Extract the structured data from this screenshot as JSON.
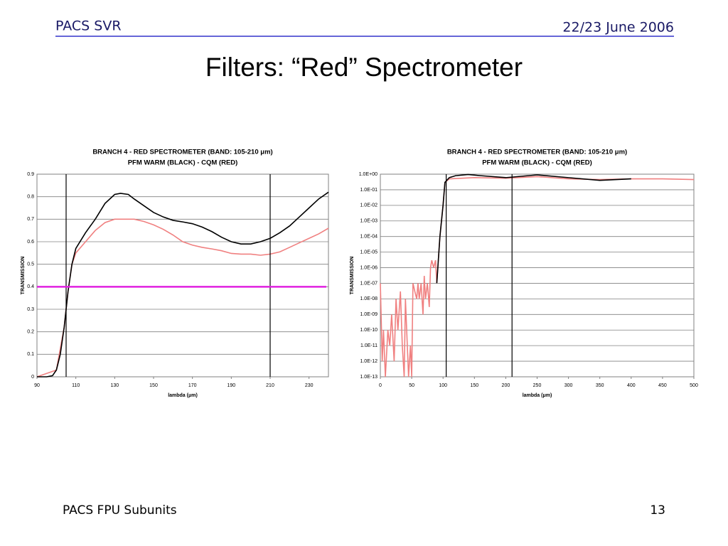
{
  "header": {
    "left": "PACS SVR",
    "right": "22/23 June 2006"
  },
  "title": "Filters: “Red” Spectrometer",
  "footer": {
    "left": "PACS FPU Subunits",
    "right": "13"
  },
  "chart_data": [
    {
      "type": "line",
      "title": "BRANCH 4 - RED SPECTROMETER (BAND: 105-210 μm)",
      "subtitle": "PFM WARM (BLACK) - CQM (RED)",
      "x_label": "lambda (μm)",
      "y_label": "TRANSMISSION",
      "xlim": [
        90,
        240
      ],
      "xticks": [
        90,
        110,
        130,
        150,
        170,
        190,
        210,
        230
      ],
      "ylim": [
        0,
        0.9
      ],
      "yticks": [
        0,
        0.1,
        0.2,
        0.3,
        0.4,
        0.5,
        0.6,
        0.7,
        0.8,
        0.9
      ],
      "grid": true,
      "log_y": false,
      "vlines": [
        105,
        210
      ],
      "vline_color": "#000000",
      "hlines": [
        0.4
      ],
      "hline_color": "#e020e0",
      "series": [
        {
          "color": "#f08080",
          "x": [
            90,
            100,
            104,
            106,
            108,
            110,
            115,
            120,
            125,
            130,
            135,
            140,
            145,
            150,
            155,
            160,
            165,
            170,
            175,
            180,
            185,
            190,
            195,
            200,
            205,
            210,
            215,
            220,
            225,
            230,
            235,
            240
          ],
          "values": [
            0,
            0.03,
            0.22,
            0.38,
            0.5,
            0.55,
            0.6,
            0.65,
            0.685,
            0.7,
            0.7,
            0.7,
            0.69,
            0.675,
            0.655,
            0.63,
            0.6,
            0.585,
            0.575,
            0.568,
            0.56,
            0.548,
            0.545,
            0.545,
            0.54,
            0.545,
            0.555,
            0.575,
            0.595,
            0.615,
            0.635,
            0.66
          ]
        },
        {
          "color": "#000000",
          "x": [
            90,
            95,
            98,
            100,
            102,
            104,
            106,
            108,
            110,
            115,
            120,
            125,
            130,
            133,
            137,
            140,
            145,
            150,
            155,
            160,
            165,
            170,
            175,
            180,
            185,
            190,
            195,
            200,
            205,
            210,
            215,
            220,
            225,
            230,
            235,
            240
          ],
          "values": [
            0,
            0,
            0.005,
            0.03,
            0.1,
            0.22,
            0.38,
            0.5,
            0.57,
            0.64,
            0.7,
            0.77,
            0.81,
            0.815,
            0.81,
            0.79,
            0.76,
            0.73,
            0.71,
            0.695,
            0.688,
            0.68,
            0.665,
            0.645,
            0.62,
            0.6,
            0.59,
            0.59,
            0.6,
            0.615,
            0.64,
            0.67,
            0.71,
            0.75,
            0.79,
            0.82
          ]
        }
      ]
    },
    {
      "type": "line",
      "title": "BRANCH 4 - RED SPECTROMETER (BAND: 105-210 μm)",
      "subtitle": "PFM WARM (BLACK) - CQM (RED)",
      "x_label": "lambda (μm)",
      "y_label": "TRANSMISSION",
      "xlim": [
        0,
        500
      ],
      "xticks": [
        0,
        50,
        100,
        150,
        200,
        250,
        300,
        350,
        400,
        450,
        500
      ],
      "ylim": [
        1e-13,
        1
      ],
      "log_y": true,
      "yticks": [
        {
          "value": 1,
          "label": "1.0E+00"
        },
        {
          "value": 0.1,
          "label": "1.0E-01"
        },
        {
          "value": 0.01,
          "label": "1.0E-02"
        },
        {
          "value": 0.001,
          "label": "1.0E-03"
        },
        {
          "value": 0.0001,
          "label": "1.0E-04"
        },
        {
          "value": 1e-05,
          "label": "1.0E-05"
        },
        {
          "value": 1e-06,
          "label": "1.0E-06"
        },
        {
          "value": 1e-07,
          "label": "1.0E-07"
        },
        {
          "value": 1e-08,
          "label": "1.0E-08"
        },
        {
          "value": 1e-09,
          "label": "1.0E-09"
        },
        {
          "value": 1e-10,
          "label": "1.0E-10"
        },
        {
          "value": 1e-11,
          "label": "1.0E-11"
        },
        {
          "value": 1e-12,
          "label": "1.0E-12"
        },
        {
          "value": 1e-13,
          "label": "1.0E-13"
        }
      ],
      "grid": true,
      "vlines": [
        105,
        210
      ],
      "vline_color": "#000000",
      "series": [
        {
          "color": "#f08080",
          "x": [
            0,
            3,
            5,
            8,
            12,
            15,
            18,
            22,
            25,
            28,
            32,
            35,
            38,
            40,
            42,
            45,
            48,
            50,
            52,
            55,
            58,
            60,
            62,
            65,
            68,
            70,
            72,
            75,
            78,
            80,
            82,
            85,
            88,
            90,
            95,
            100,
            103,
            110,
            150,
            200,
            250,
            300,
            350,
            400,
            450,
            500
          ],
          "values": [
            1e-07,
            1e-12,
            1e-10,
            1e-13,
            1e-10,
            1e-11,
            1e-09,
            1e-12,
            1e-08,
            1e-10,
            3e-08,
            1e-11,
            1e-13,
            1e-08,
            1e-10,
            1e-13,
            1e-11,
            1e-13,
            1e-07,
            3e-08,
            1e-08,
            1e-07,
            1e-08,
            1e-07,
            1e-09,
            3e-07,
            1e-08,
            1e-07,
            3e-09,
            1e-06,
            3e-06,
            1e-06,
            3e-06,
            1e-07,
            0.0001,
            0.01,
            0.3,
            0.5,
            0.6,
            0.55,
            0.7,
            0.5,
            0.45,
            0.5,
            0.5,
            0.45
          ]
        },
        {
          "color": "#000000",
          "x": [
            90,
            95,
            100,
            103,
            110,
            120,
            140,
            160,
            200,
            250,
            300,
            350,
            400
          ],
          "values": [
            1e-07,
            0.0001,
            0.01,
            0.3,
            0.6,
            0.8,
            0.95,
            0.8,
            0.6,
            0.9,
            0.6,
            0.4,
            0.5
          ]
        }
      ]
    }
  ]
}
